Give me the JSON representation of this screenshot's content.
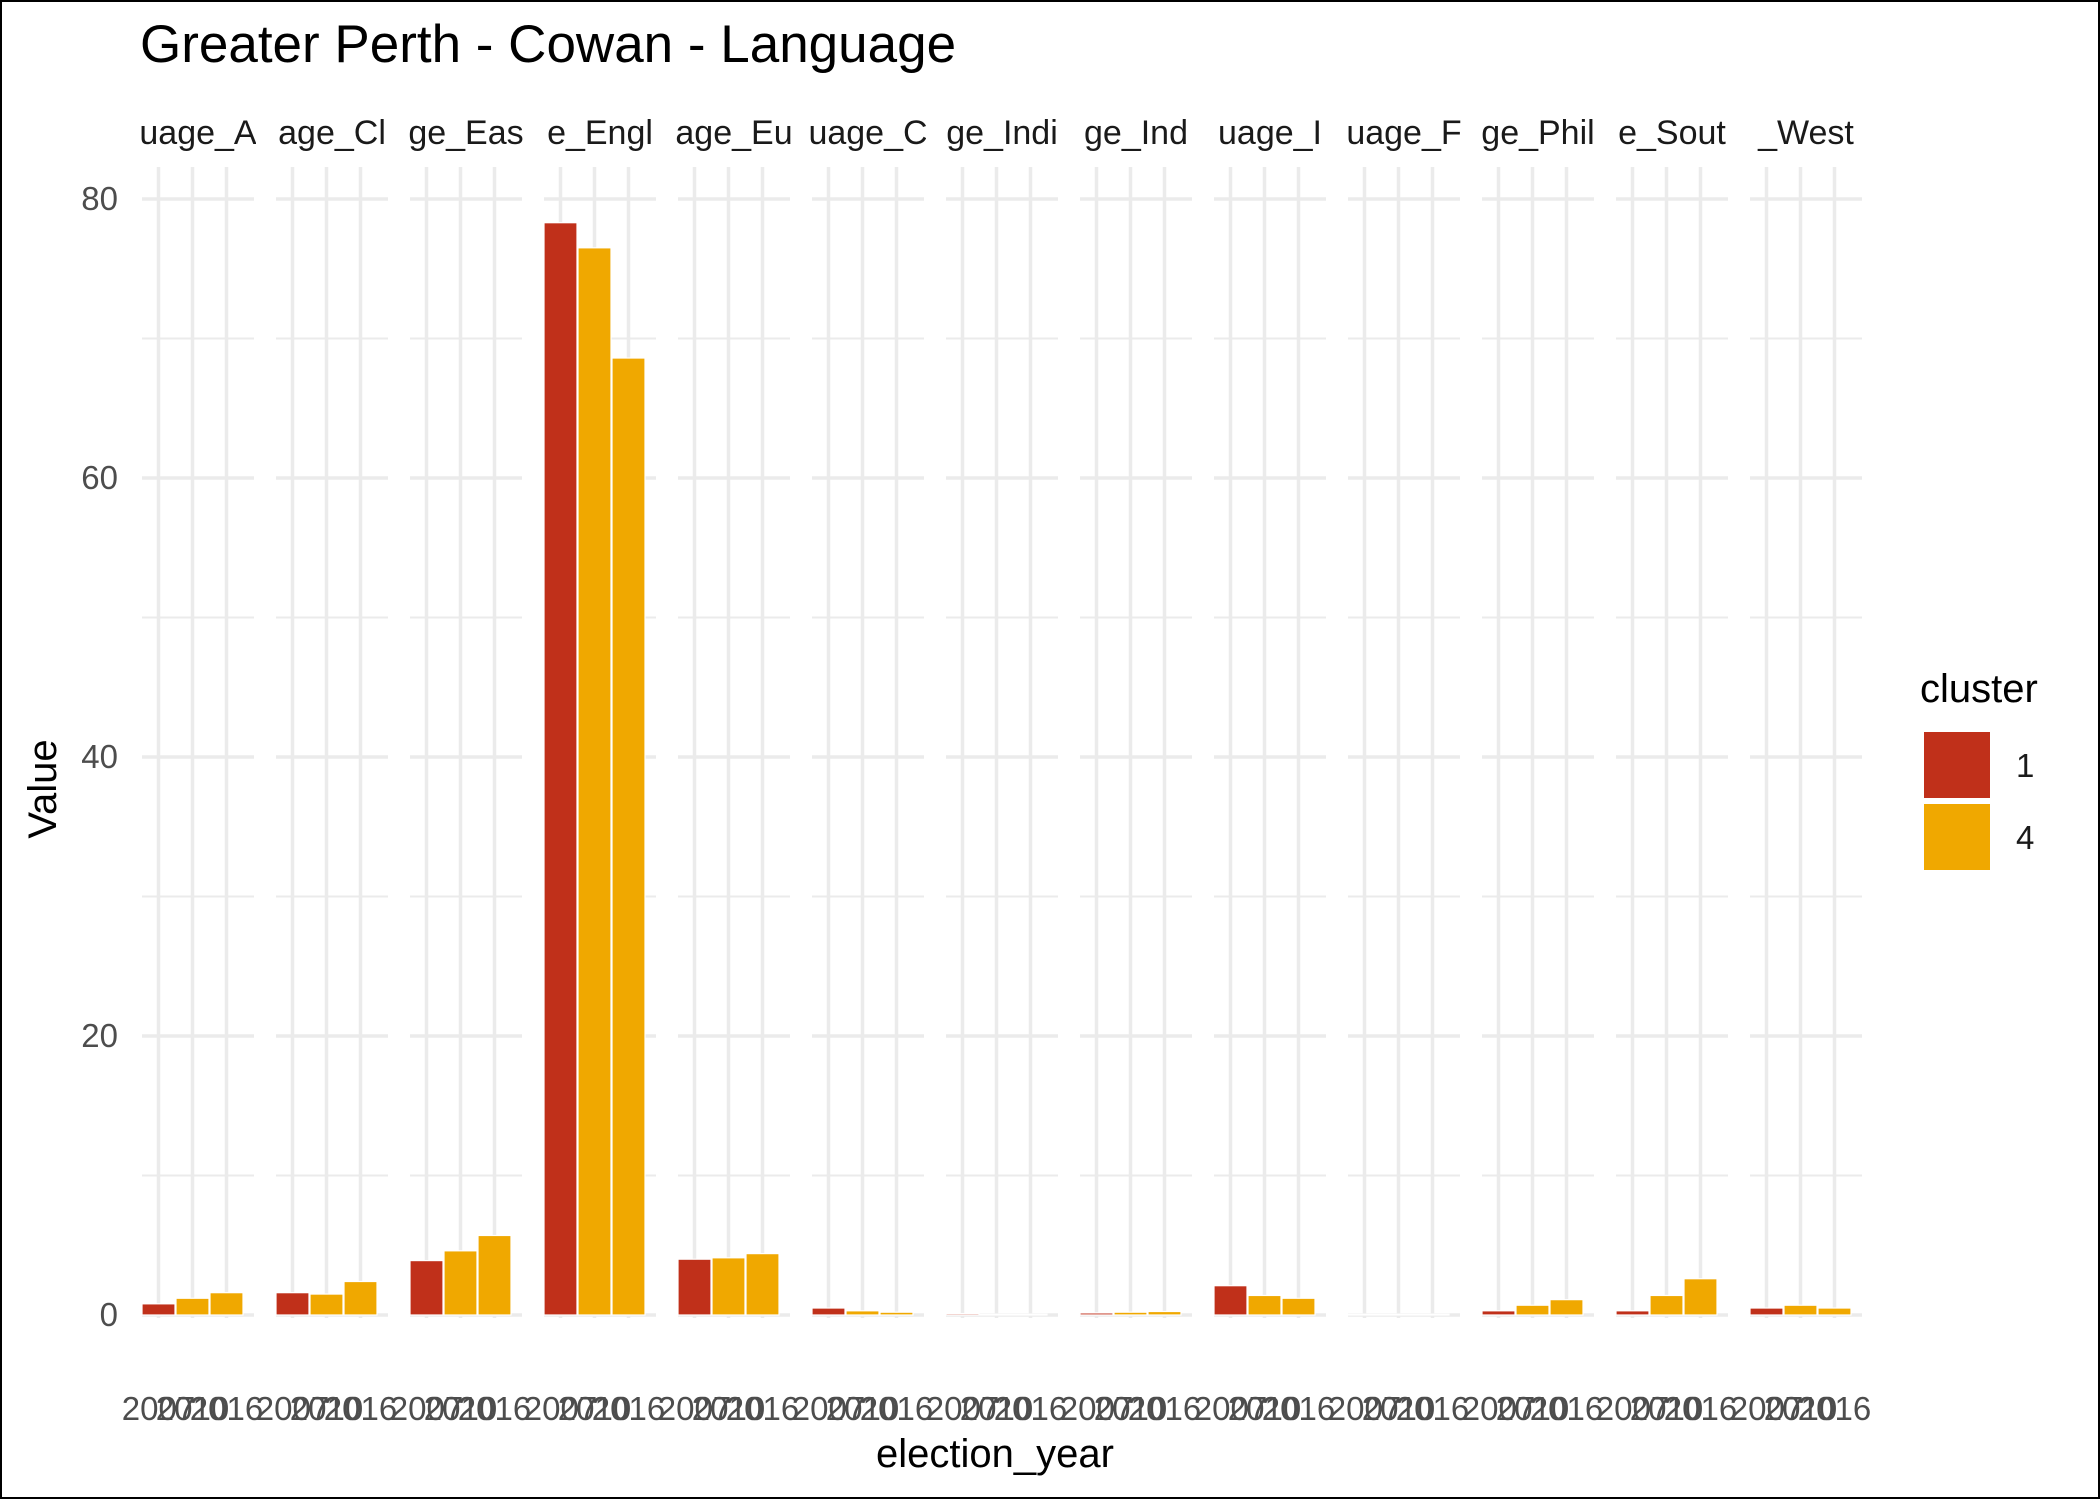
{
  "chart_data": {
    "type": "bar",
    "title": "Greater Perth - Cowan - Language",
    "xlabel": "election_year",
    "ylabel": "Value",
    "ylim": [
      0,
      80
    ],
    "y_ticks": [
      0,
      20,
      40,
      60,
      80
    ],
    "grid": true,
    "legend": {
      "title": "cluster",
      "position": "right",
      "entries": [
        "1",
        "4"
      ]
    },
    "colors": {
      "1": "#C0301A",
      "4": "#F0A800"
    },
    "x_tick_labels": [
      "2007",
      "2010",
      "2016"
    ],
    "facets": [
      {
        "label": "uage_A",
        "bars": [
          {
            "year": "2007",
            "cluster": "1",
            "value": 0.8
          },
          {
            "year": "2010",
            "cluster": "4",
            "value": 1.2
          },
          {
            "year": "2016",
            "cluster": "4",
            "value": 1.6
          }
        ]
      },
      {
        "label": "age_Cl",
        "bars": [
          {
            "year": "2007",
            "cluster": "1",
            "value": 1.6
          },
          {
            "year": "2010",
            "cluster": "4",
            "value": 1.5
          },
          {
            "year": "2016",
            "cluster": "4",
            "value": 2.4
          }
        ]
      },
      {
        "label": "ge_Eas",
        "bars": [
          {
            "year": "2007",
            "cluster": "1",
            "value": 3.9
          },
          {
            "year": "2010",
            "cluster": "4",
            "value": 4.6
          },
          {
            "year": "2016",
            "cluster": "4",
            "value": 5.7
          }
        ]
      },
      {
        "label": "e_Engl",
        "bars": [
          {
            "year": "2007",
            "cluster": "1",
            "value": 78.3
          },
          {
            "year": "2010",
            "cluster": "4",
            "value": 76.5
          },
          {
            "year": "2016",
            "cluster": "4",
            "value": 68.6
          }
        ]
      },
      {
        "label": "age_Eu",
        "bars": [
          {
            "year": "2007",
            "cluster": "1",
            "value": 4.0
          },
          {
            "year": "2010",
            "cluster": "4",
            "value": 4.1
          },
          {
            "year": "2016",
            "cluster": "4",
            "value": 4.4
          }
        ]
      },
      {
        "label": "uage_C",
        "bars": [
          {
            "year": "2007",
            "cluster": "1",
            "value": 0.5
          },
          {
            "year": "2010",
            "cluster": "4",
            "value": 0.3
          },
          {
            "year": "2016",
            "cluster": "4",
            "value": 0.2
          }
        ]
      },
      {
        "label": "ge_Indi",
        "bars": [
          {
            "year": "2007",
            "cluster": "1",
            "value": 0.1
          },
          {
            "year": "2010",
            "cluster": "4",
            "value": 0.05
          },
          {
            "year": "2016",
            "cluster": "4",
            "value": 0.05
          }
        ]
      },
      {
        "label": "ge_Ind",
        "bars": [
          {
            "year": "2007",
            "cluster": "1",
            "value": 0.15
          },
          {
            "year": "2010",
            "cluster": "4",
            "value": 0.2
          },
          {
            "year": "2016",
            "cluster": "4",
            "value": 0.25
          }
        ]
      },
      {
        "label": "uage_I",
        "bars": [
          {
            "year": "2007",
            "cluster": "1",
            "value": 2.1
          },
          {
            "year": "2010",
            "cluster": "4",
            "value": 1.4
          },
          {
            "year": "2016",
            "cluster": "4",
            "value": 1.2
          }
        ]
      },
      {
        "label": "uage_F",
        "bars": [
          {
            "year": "2007",
            "cluster": "1",
            "value": 0.03
          },
          {
            "year": "2010",
            "cluster": "4",
            "value": 0.03
          },
          {
            "year": "2016",
            "cluster": "4",
            "value": 0.05
          }
        ]
      },
      {
        "label": "ge_Phil",
        "bars": [
          {
            "year": "2007",
            "cluster": "1",
            "value": 0.3
          },
          {
            "year": "2010",
            "cluster": "4",
            "value": 0.7
          },
          {
            "year": "2016",
            "cluster": "4",
            "value": 1.1
          }
        ]
      },
      {
        "label": "e_Sout",
        "bars": [
          {
            "year": "2007",
            "cluster": "1",
            "value": 0.3
          },
          {
            "year": "2010",
            "cluster": "4",
            "value": 1.4
          },
          {
            "year": "2016",
            "cluster": "4",
            "value": 2.6
          }
        ]
      },
      {
        "label": "_West",
        "bars": [
          {
            "year": "2007",
            "cluster": "1",
            "value": 0.5
          },
          {
            "year": "2010",
            "cluster": "4",
            "value": 0.7
          },
          {
            "year": "2016",
            "cluster": "4",
            "value": 0.5
          }
        ]
      }
    ]
  }
}
